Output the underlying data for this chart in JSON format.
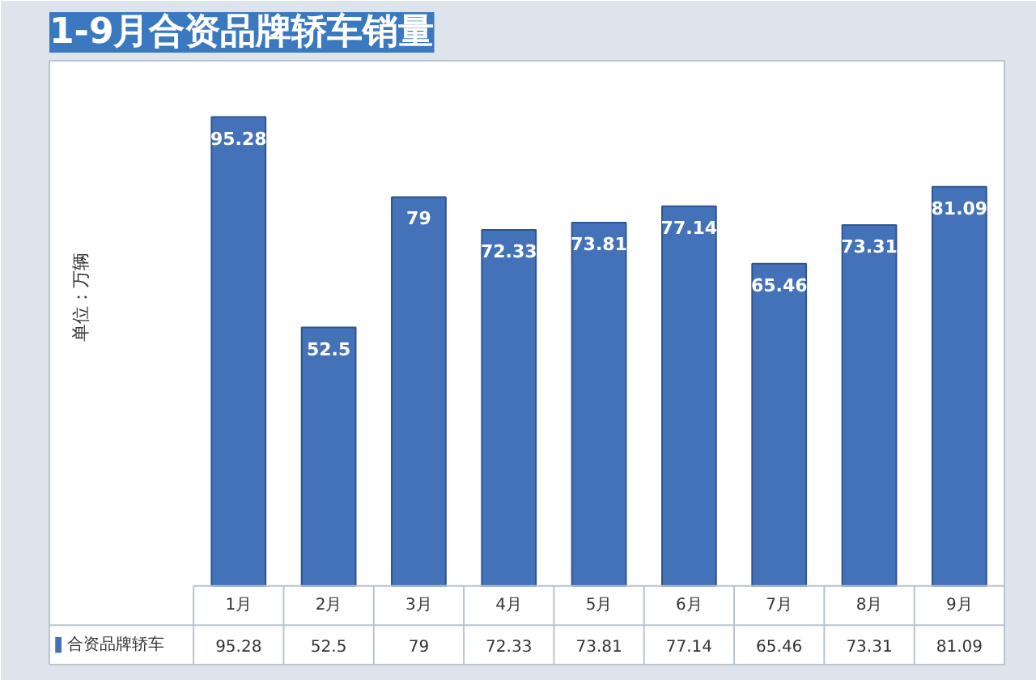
{
  "chart_data": {
    "type": "bar",
    "title": "1-9月合资品牌轿车销量",
    "annotations": [
      "单位：万辆",
      "95.28",
      "52.5",
      "79",
      "72.33",
      "73.81",
      "77.14",
      "65.46",
      "73.31",
      "81.09"
    ],
    "categories": [
      "1月",
      "2月",
      "3月",
      "4月",
      "5月",
      "6月",
      "7月",
      "8月",
      "9月"
    ],
    "series": [
      {
        "name": "合资品牌轿车",
        "color": "#4472b8",
        "values": [
          95.28,
          52.5,
          79,
          72.33,
          73.81,
          77.14,
          65.46,
          73.31,
          81.09
        ],
        "value_labels": [
          "95.28",
          "52.5",
          "79",
          "72.33",
          "73.81",
          "77.14",
          "65.46",
          "73.31",
          "81.09"
        ]
      }
    ],
    "grid": false,
    "legend": "bottom"
  }
}
